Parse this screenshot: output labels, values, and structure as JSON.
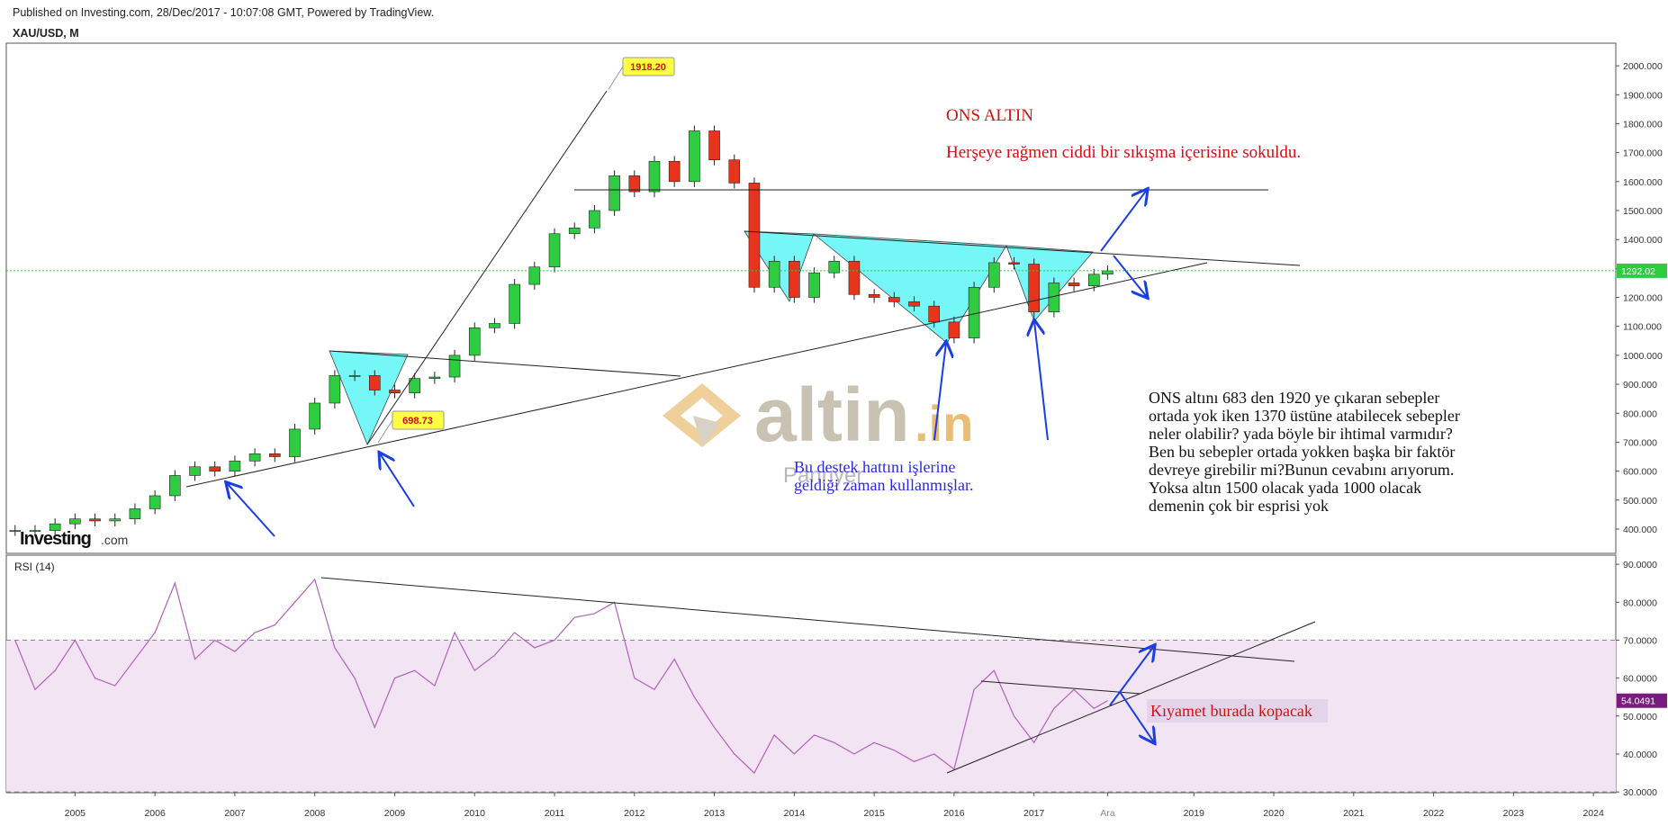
{
  "header": {
    "published": "Published on Investing.com, 28/Dec/2017 - 10:07:08 GMT, Powered by TradingView."
  },
  "watermarks": {
    "brand": "altin",
    "domain": ".in",
    "source": "Investing",
    "source_domain": ".com",
    "faint": "Panriyer"
  },
  "chart_data": [
    {
      "type": "candlestick",
      "title": "XAU/USD, M",
      "up_color": "#2ecc40",
      "down_color": "#e8341c",
      "x": [
        2004.25,
        2004.5,
        2004.75,
        2005,
        2005.25,
        2005.5,
        2005.75,
        2006,
        2006.25,
        2006.5,
        2006.75,
        2007,
        2007.25,
        2007.5,
        2007.75,
        2008,
        2008.25,
        2008.5,
        2008.75,
        2009,
        2009.25,
        2009.5,
        2009.75,
        2010,
        2010.25,
        2010.5,
        2010.75,
        2011,
        2011.25,
        2011.5,
        2011.75,
        2012,
        2012.25,
        2012.5,
        2012.75,
        2013,
        2013.25,
        2013.5,
        2013.75,
        2014,
        2014.25,
        2014.5,
        2014.75,
        2015,
        2015.25,
        2015.5,
        2015.75,
        2016,
        2016.25,
        2016.5,
        2016.75,
        2017,
        2017.25,
        2017.5,
        2017.75,
        2017.92
      ],
      "values": [
        395,
        395,
        418,
        435,
        428,
        435,
        470,
        515,
        585,
        615,
        600,
        635,
        660,
        650,
        745,
        835,
        930,
        930,
        880,
        870,
        920,
        925,
        1000,
        1095,
        1110,
        1245,
        1305,
        1420,
        1440,
        1500,
        1620,
        1565,
        1670,
        1600,
        1775,
        1675,
        1595,
        1235,
        1325,
        1200,
        1285,
        1325,
        1210,
        1200,
        1185,
        1170,
        1115,
        1060,
        1235,
        1320,
        1315,
        1150,
        1250,
        1240,
        1280,
        1292
      ],
      "xlim": [
        2004.14,
        2024.28
      ],
      "xticks": [
        2005,
        2006,
        2007,
        2008,
        2009,
        2010,
        2011,
        2012,
        2013,
        2014,
        2015,
        2016,
        2017,
        {
          "value": 2017.92,
          "label": "Ara"
        },
        2019,
        2020,
        2021,
        2022,
        2023,
        2024
      ],
      "ylim": [
        316,
        2078
      ],
      "yticks": [
        {
          "value": 400,
          "label": "400.000"
        },
        {
          "value": 500,
          "label": "500.000"
        },
        {
          "value": 600,
          "label": "600.000"
        },
        {
          "value": 700,
          "label": "700.000"
        },
        {
          "value": 800,
          "label": "800.000"
        },
        {
          "value": 900,
          "label": "900.000"
        },
        {
          "value": 1000,
          "label": "1000.000"
        },
        {
          "value": 1100,
          "label": "1100.000"
        },
        {
          "value": 1200,
          "label": "1200.000"
        },
        {
          "value": 1300,
          "label": "1300.000"
        },
        {
          "value": 1400,
          "label": "1400.000"
        },
        {
          "value": 1500,
          "label": "1500.000"
        },
        {
          "value": 1600,
          "label": "1600.000"
        },
        {
          "value": 1700,
          "label": "1700.000"
        },
        {
          "value": 1800,
          "label": "1800.000"
        },
        {
          "value": 1900,
          "label": "1900.000"
        },
        {
          "value": 2000,
          "label": "2000.000"
        }
      ],
      "last_value": 1292.02,
      "callouts": [
        1918.2,
        698.73
      ],
      "callout_labels": [
        "1918.20",
        "698.73"
      ],
      "annotations": {
        "title": "ONS ALTIN",
        "subtitle": "Herşeye rağmen ciddi bir sıkışma içerisine sokuldu.",
        "note": [
          "ONS altını 683 den 1920 ye çıkaran sebepler",
          "ortada yok iken 1370 üstüne atabilecek sebepler",
          "neler olabilir? yada böyle bir ihtimal varmıdır?",
          "Ben bu sebepler ortada yokken başka bir faktör",
          "devreye girebilir mi?Bunun cevabını arıyorum.",
          "Yoksa altın 1500 olacak yada 1000 olacak",
          "demenin çok bir esprisi yok"
        ],
        "support": [
          "Bu destek hattını işlerine",
          "geldiği zaman kullanmışlar."
        ]
      }
    },
    {
      "type": "line",
      "title": "RSI (14)",
      "color": "#b061b8",
      "values": [
        70,
        57,
        62,
        70,
        60,
        58,
        65,
        72,
        85,
        65,
        70,
        67,
        72,
        74,
        80,
        86,
        68,
        60,
        47,
        60,
        62,
        58,
        72,
        62,
        66,
        72,
        68,
        70,
        76,
        77,
        80,
        60,
        57,
        65,
        55,
        47,
        40,
        35,
        45,
        40,
        45,
        43,
        40,
        43,
        41,
        38,
        40,
        36,
        57,
        62,
        50,
        43,
        52,
        57,
        52,
        54.0491
      ],
      "ylim": [
        29.8,
        92.4
      ],
      "yticks": [
        {
          "value": 30,
          "label": "30.0000"
        },
        {
          "value": 40,
          "label": "40.0000"
        },
        {
          "value": 50,
          "label": "50.0000"
        },
        {
          "value": 60,
          "label": "60.0000"
        },
        {
          "value": 70,
          "label": "70.0000"
        },
        {
          "value": 80,
          "label": "80.0000"
        },
        {
          "value": 90,
          "label": "90.0000"
        }
      ],
      "band": [
        30,
        70
      ],
      "last_value": 54.0491,
      "annotation": "Kıyamet burada kopacak"
    }
  ]
}
